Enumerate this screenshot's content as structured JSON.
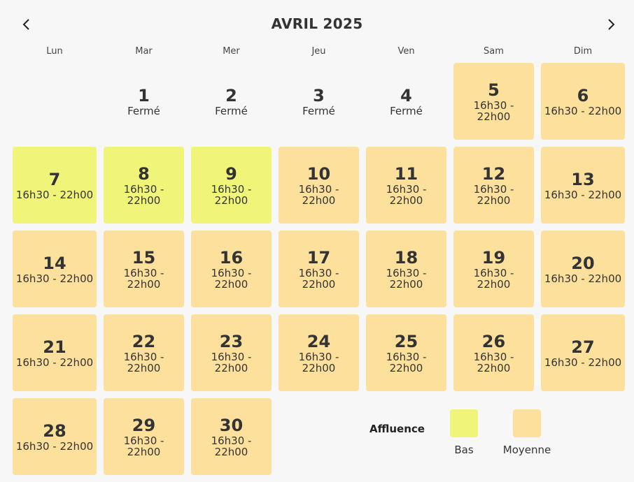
{
  "header": {
    "title": "AVRIL 2025",
    "prev_icon": "chevron-left-icon",
    "next_icon": "chevron-right-icon"
  },
  "weekdays": [
    "Lun",
    "Mar",
    "Mer",
    "Jeu",
    "Ven",
    "Sam",
    "Dim"
  ],
  "days": [
    {
      "num": "1",
      "label": "Fermé",
      "status": "closed"
    },
    {
      "num": "2",
      "label": "Fermé",
      "status": "closed"
    },
    {
      "num": "3",
      "label": "Fermé",
      "status": "closed"
    },
    {
      "num": "4",
      "label": "Fermé",
      "status": "closed"
    },
    {
      "num": "5",
      "label": "16h30 - 22h00",
      "status": "moyenne"
    },
    {
      "num": "6",
      "label": "16h30 - 22h00",
      "status": "moyenne"
    },
    {
      "num": "7",
      "label": "16h30 - 22h00",
      "status": "bas"
    },
    {
      "num": "8",
      "label": "16h30 - 22h00",
      "status": "bas"
    },
    {
      "num": "9",
      "label": "16h30 - 22h00",
      "status": "bas"
    },
    {
      "num": "10",
      "label": "16h30 - 22h00",
      "status": "moyenne"
    },
    {
      "num": "11",
      "label": "16h30 - 22h00",
      "status": "moyenne"
    },
    {
      "num": "12",
      "label": "16h30 - 22h00",
      "status": "moyenne"
    },
    {
      "num": "13",
      "label": "16h30 - 22h00",
      "status": "moyenne"
    },
    {
      "num": "14",
      "label": "16h30 - 22h00",
      "status": "moyenne"
    },
    {
      "num": "15",
      "label": "16h30 - 22h00",
      "status": "moyenne"
    },
    {
      "num": "16",
      "label": "16h30 - 22h00",
      "status": "moyenne"
    },
    {
      "num": "17",
      "label": "16h30 - 22h00",
      "status": "moyenne"
    },
    {
      "num": "18",
      "label": "16h30 - 22h00",
      "status": "moyenne"
    },
    {
      "num": "19",
      "label": "16h30 - 22h00",
      "status": "moyenne"
    },
    {
      "num": "20",
      "label": "16h30 - 22h00",
      "status": "moyenne"
    },
    {
      "num": "21",
      "label": "16h30 - 22h00",
      "status": "moyenne"
    },
    {
      "num": "22",
      "label": "16h30 - 22h00",
      "status": "moyenne"
    },
    {
      "num": "23",
      "label": "16h30 - 22h00",
      "status": "moyenne"
    },
    {
      "num": "24",
      "label": "16h30 - 22h00",
      "status": "moyenne"
    },
    {
      "num": "25",
      "label": "16h30 - 22h00",
      "status": "moyenne"
    },
    {
      "num": "26",
      "label": "16h30 - 22h00",
      "status": "moyenne"
    },
    {
      "num": "27",
      "label": "16h30 - 22h00",
      "status": "moyenne"
    },
    {
      "num": "28",
      "label": "16h30 - 22h00",
      "status": "moyenne"
    },
    {
      "num": "29",
      "label": "16h30 - 22h00",
      "status": "moyenne"
    },
    {
      "num": "30",
      "label": "16h30 - 22h00",
      "status": "moyenne"
    }
  ],
  "legend": {
    "title": "Affluence",
    "bas_label": "Bas",
    "moyenne_label": "Moyenne"
  },
  "colors": {
    "bas": "#f0f57a",
    "moyenne": "#fce09b",
    "background": "#f7f7f7"
  }
}
